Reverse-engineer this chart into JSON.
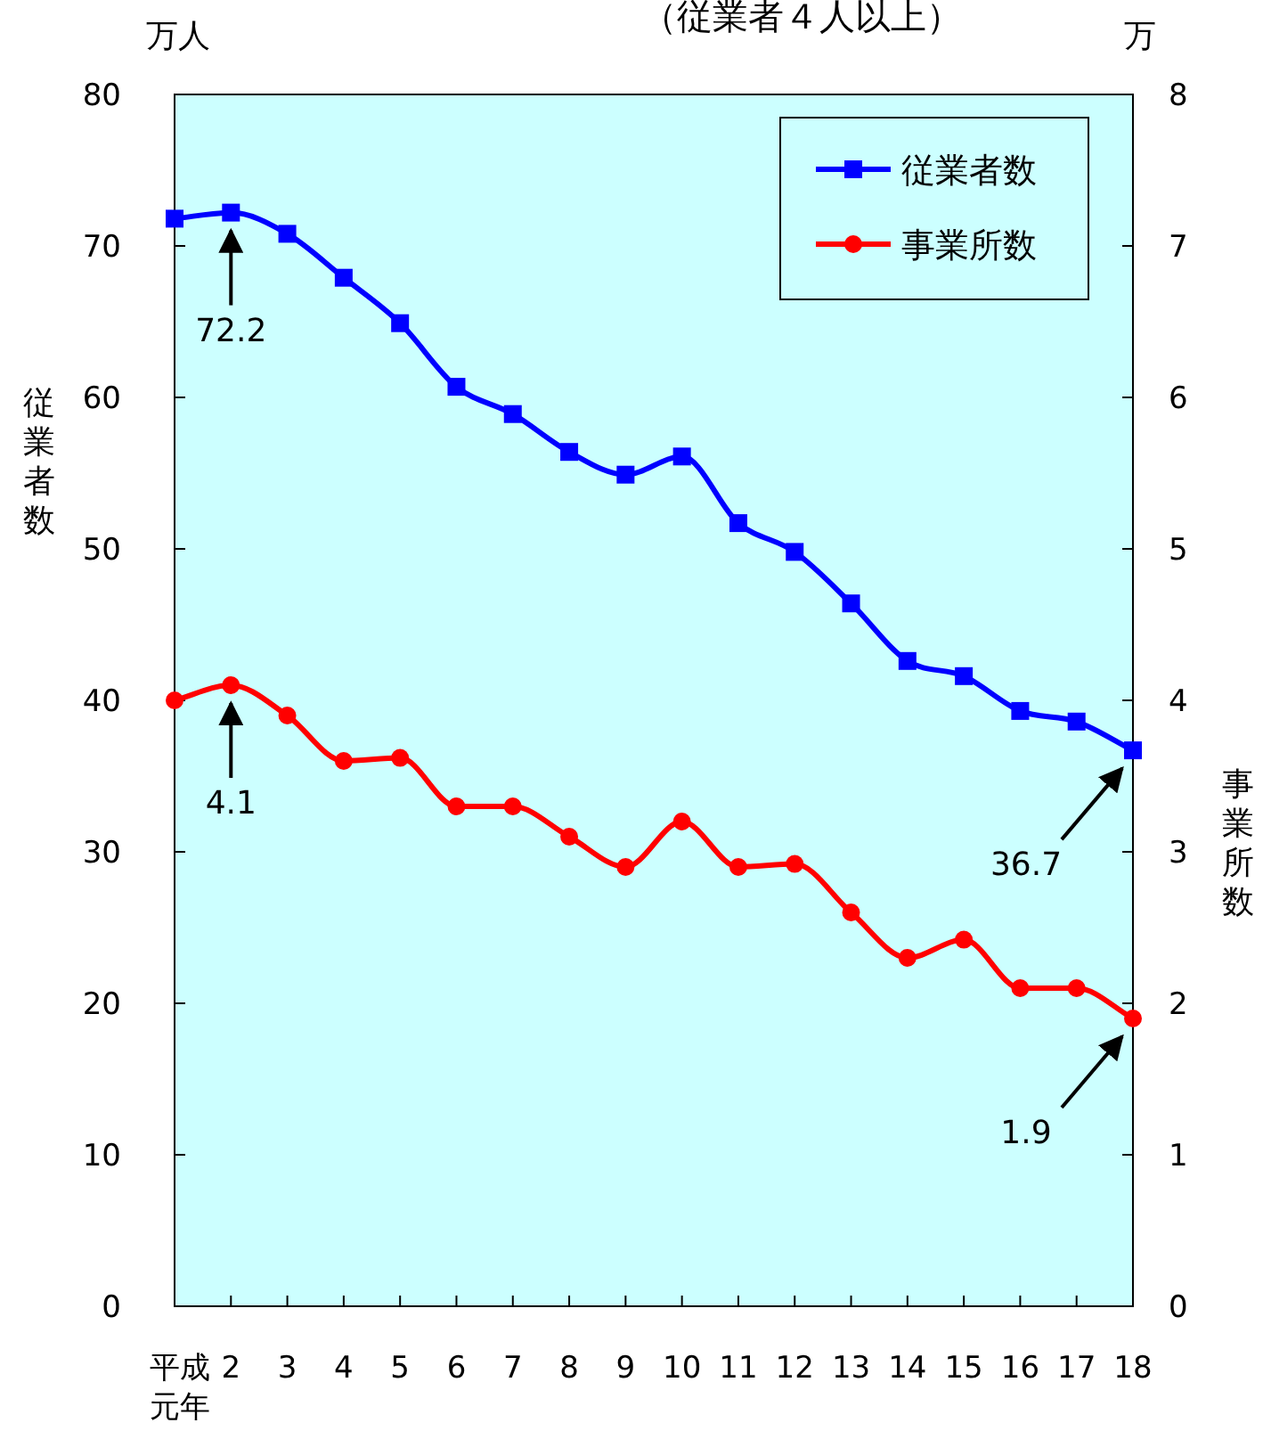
{
  "chart_data": {
    "type": "line",
    "title": "（従業者４人以上）",
    "ylabel": "従業者数",
    "y2label": "事業所数",
    "annotations": [
      "万人",
      "万"
    ],
    "categories": [
      "平成元年",
      "2",
      "3",
      "4",
      "5",
      "6",
      "7",
      "8",
      "9",
      "10",
      "11",
      "12",
      "13",
      "14",
      "15",
      "16",
      "17",
      "18"
    ],
    "series": [
      {
        "name": "従業者数",
        "color": "#0000ff",
        "marker": "square",
        "values": [
          71.8,
          72.2,
          70.8,
          67.9,
          64.9,
          60.7,
          58.9,
          56.4,
          54.9,
          56.1,
          51.7,
          49.8,
          46.4,
          42.6,
          41.6,
          39.3,
          38.6,
          36.7
        ],
        "value_labels": [
          null,
          "72.2",
          null,
          null,
          null,
          null,
          null,
          null,
          null,
          null,
          null,
          null,
          null,
          null,
          null,
          null,
          null,
          "36.7"
        ]
      },
      {
        "name": "事業所数",
        "color": "#ff0000",
        "marker": "circle",
        "axis": "y2",
        "values": [
          4.0,
          4.1,
          3.9,
          3.6,
          3.62,
          3.3,
          3.3,
          3.1,
          2.9,
          3.2,
          2.9,
          2.92,
          2.6,
          2.3,
          2.42,
          2.1,
          2.1,
          1.9
        ],
        "value_labels": [
          null,
          "4.1",
          null,
          null,
          null,
          null,
          null,
          null,
          null,
          null,
          null,
          null,
          null,
          null,
          null,
          null,
          null,
          "1.9"
        ]
      }
    ],
    "ylim": [
      0,
      80
    ],
    "yticks": [
      0,
      10,
      20,
      30,
      40,
      50,
      60,
      70,
      80
    ],
    "y2lim": [
      0,
      8
    ],
    "y2ticks": [
      0,
      1,
      2,
      3,
      4,
      5,
      6,
      7,
      8
    ],
    "grid": false,
    "legend": "top right"
  }
}
